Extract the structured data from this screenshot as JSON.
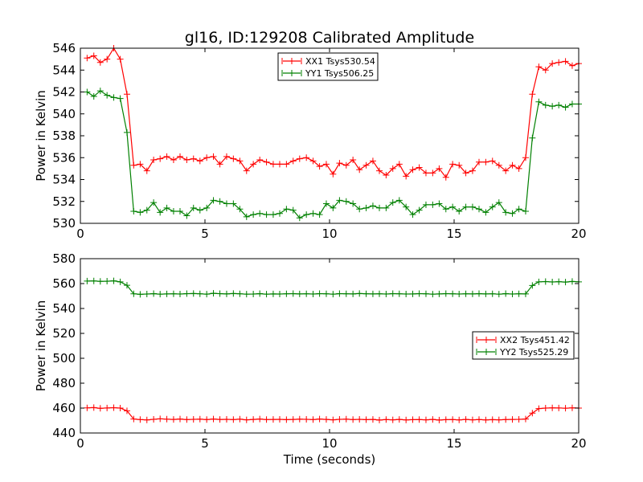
{
  "title": "gl16, ID:129208 Calibrated Amplitude",
  "colors": {
    "red": "#ff0000",
    "green": "#008000"
  },
  "chart_data": [
    {
      "type": "line",
      "title": "gl16, ID:129208 Calibrated Amplitude",
      "xlabel": "",
      "ylabel": "Power in Kelvin",
      "xlim": [
        0,
        20
      ],
      "ylim": [
        530,
        546
      ],
      "xticks": [
        "0",
        "5",
        "10",
        "15",
        "20"
      ],
      "yticks": [
        "530",
        "532",
        "534",
        "536",
        "538",
        "540",
        "542",
        "544",
        "546"
      ],
      "legend_position": "top-center",
      "x": [
        0.27,
        0.54,
        0.8,
        1.07,
        1.34,
        1.6,
        1.87,
        2.14,
        2.4,
        2.67,
        2.94,
        3.2,
        3.47,
        3.74,
        4.0,
        4.27,
        4.54,
        4.8,
        5.07,
        5.34,
        5.6,
        5.87,
        6.14,
        6.4,
        6.67,
        6.94,
        7.2,
        7.47,
        7.74,
        8.0,
        8.27,
        8.54,
        8.8,
        9.07,
        9.34,
        9.6,
        9.87,
        10.14,
        10.4,
        10.67,
        10.94,
        11.2,
        11.47,
        11.74,
        12.0,
        12.27,
        12.54,
        12.8,
        13.07,
        13.34,
        13.6,
        13.87,
        14.14,
        14.4,
        14.67,
        14.94,
        15.2,
        15.47,
        15.74,
        16.0,
        16.27,
        16.54,
        16.8,
        17.07,
        17.34,
        17.6,
        17.87,
        18.14,
        18.4,
        18.67,
        18.94,
        19.2,
        19.47,
        19.74,
        20.0
      ],
      "series": [
        {
          "name": "XX1 Tsys530.54",
          "color": "#ff0000",
          "values": [
            545.1,
            545.3,
            544.7,
            545.0,
            546.0,
            545.0,
            541.8,
            535.3,
            535.4,
            534.8,
            535.8,
            535.9,
            536.1,
            535.8,
            536.1,
            535.8,
            535.9,
            535.7,
            536.0,
            536.1,
            535.4,
            536.1,
            535.9,
            535.7,
            534.8,
            535.4,
            535.8,
            535.6,
            535.4,
            535.4,
            535.4,
            535.7,
            535.9,
            536.0,
            535.7,
            535.2,
            535.4,
            534.5,
            535.5,
            535.3,
            535.8,
            534.9,
            535.3,
            535.7,
            534.8,
            534.4,
            535.0,
            535.4,
            534.3,
            534.9,
            535.1,
            534.6,
            534.6,
            535.0,
            534.2,
            535.4,
            535.3,
            534.6,
            534.8,
            535.6,
            535.6,
            535.7,
            535.3,
            534.8,
            535.3,
            535.0,
            536.0,
            541.8,
            544.3,
            544.0,
            544.6,
            544.7,
            544.8,
            544.4,
            544.6
          ]
        },
        {
          "name": "YY1 Tsys506.25",
          "color": "#008000",
          "values": [
            542.0,
            541.6,
            542.1,
            541.7,
            541.5,
            541.4,
            538.3,
            531.1,
            531.0,
            531.2,
            531.9,
            531.0,
            531.4,
            531.1,
            531.1,
            530.7,
            531.4,
            531.2,
            531.4,
            532.1,
            532.0,
            531.8,
            531.8,
            531.3,
            530.6,
            530.8,
            530.9,
            530.8,
            530.8,
            530.9,
            531.3,
            531.2,
            530.5,
            530.8,
            530.9,
            530.8,
            531.8,
            531.4,
            532.1,
            532.0,
            531.8,
            531.3,
            531.4,
            531.6,
            531.4,
            531.4,
            531.9,
            532.1,
            531.5,
            530.8,
            531.2,
            531.7,
            531.7,
            531.8,
            531.3,
            531.5,
            531.1,
            531.5,
            531.5,
            531.3,
            531.0,
            531.5,
            531.9,
            531.0,
            530.9,
            531.3,
            531.1,
            537.8,
            541.1,
            540.8,
            540.7,
            540.8,
            540.6,
            540.9,
            540.9
          ]
        }
      ]
    },
    {
      "type": "line",
      "title": "",
      "xlabel": "Time (seconds)",
      "ylabel": "Power in Kelvin",
      "xlim": [
        0,
        20
      ],
      "ylim": [
        440,
        580
      ],
      "xticks": [
        "0",
        "5",
        "10",
        "15",
        "20"
      ],
      "yticks": [
        "440",
        "460",
        "480",
        "500",
        "520",
        "540",
        "560",
        "580"
      ],
      "legend_position": "center-right",
      "x": [
        0.27,
        0.54,
        0.8,
        1.07,
        1.34,
        1.6,
        1.87,
        2.14,
        2.4,
        2.67,
        2.94,
        3.2,
        3.47,
        3.74,
        4.0,
        4.27,
        4.54,
        4.8,
        5.07,
        5.34,
        5.6,
        5.87,
        6.14,
        6.4,
        6.67,
        6.94,
        7.2,
        7.47,
        7.74,
        8.0,
        8.27,
        8.54,
        8.8,
        9.07,
        9.34,
        9.6,
        9.87,
        10.14,
        10.4,
        10.67,
        10.94,
        11.2,
        11.47,
        11.74,
        12.0,
        12.27,
        12.54,
        12.8,
        13.07,
        13.34,
        13.6,
        13.87,
        14.14,
        14.4,
        14.67,
        14.94,
        15.2,
        15.47,
        15.74,
        16.0,
        16.27,
        16.54,
        16.8,
        17.07,
        17.34,
        17.6,
        17.87,
        18.14,
        18.4,
        18.67,
        18.94,
        19.2,
        19.47,
        19.74,
        20.0
      ],
      "series": [
        {
          "name": "XX2 Tsys451.42",
          "color": "#ff0000",
          "values": [
            460.2,
            460.4,
            459.8,
            460.1,
            460.3,
            460.0,
            457.8,
            451.2,
            450.8,
            450.5,
            451.0,
            451.4,
            451.1,
            450.9,
            451.2,
            450.8,
            451.0,
            451.1,
            450.8,
            451.2,
            450.9,
            451.0,
            450.8,
            451.1,
            450.6,
            450.9,
            451.2,
            450.8,
            450.9,
            451.0,
            450.7,
            450.9,
            451.1,
            451.0,
            450.8,
            451.2,
            450.9,
            450.6,
            451.0,
            451.1,
            450.8,
            451.0,
            450.7,
            450.9,
            450.4,
            450.8,
            450.6,
            450.9,
            450.5,
            450.7,
            450.8,
            450.6,
            450.9,
            450.4,
            450.7,
            450.8,
            450.5,
            450.9,
            450.6,
            450.8,
            450.5,
            450.7,
            450.6,
            450.8,
            450.9,
            451.0,
            451.2,
            456.0,
            459.6,
            460.0,
            460.2,
            460.1,
            459.9,
            460.2,
            460.0
          ]
        },
        {
          "name": "YY2 Tsys525.29",
          "color": "#008000",
          "values": [
            562.0,
            562.1,
            561.8,
            561.9,
            562.2,
            561.4,
            558.6,
            551.8,
            551.4,
            551.6,
            551.9,
            551.5,
            551.7,
            551.8,
            551.6,
            551.9,
            552.0,
            551.8,
            551.5,
            552.2,
            551.9,
            551.7,
            552.0,
            551.8,
            551.5,
            551.6,
            551.9,
            551.5,
            551.7,
            551.6,
            551.8,
            551.9,
            551.7,
            551.8,
            551.6,
            551.9,
            551.8,
            551.5,
            551.9,
            551.8,
            551.7,
            552.0,
            551.8,
            551.7,
            551.8,
            551.6,
            551.9,
            551.8,
            551.6,
            551.7,
            551.9,
            551.8,
            551.5,
            551.7,
            551.9,
            551.8,
            551.6,
            551.8,
            551.7,
            551.9,
            551.7,
            551.8,
            551.5,
            551.9,
            551.6,
            551.8,
            551.7,
            558.5,
            561.4,
            561.6,
            561.3,
            561.5,
            561.2,
            561.7,
            561.4
          ]
        }
      ]
    }
  ]
}
